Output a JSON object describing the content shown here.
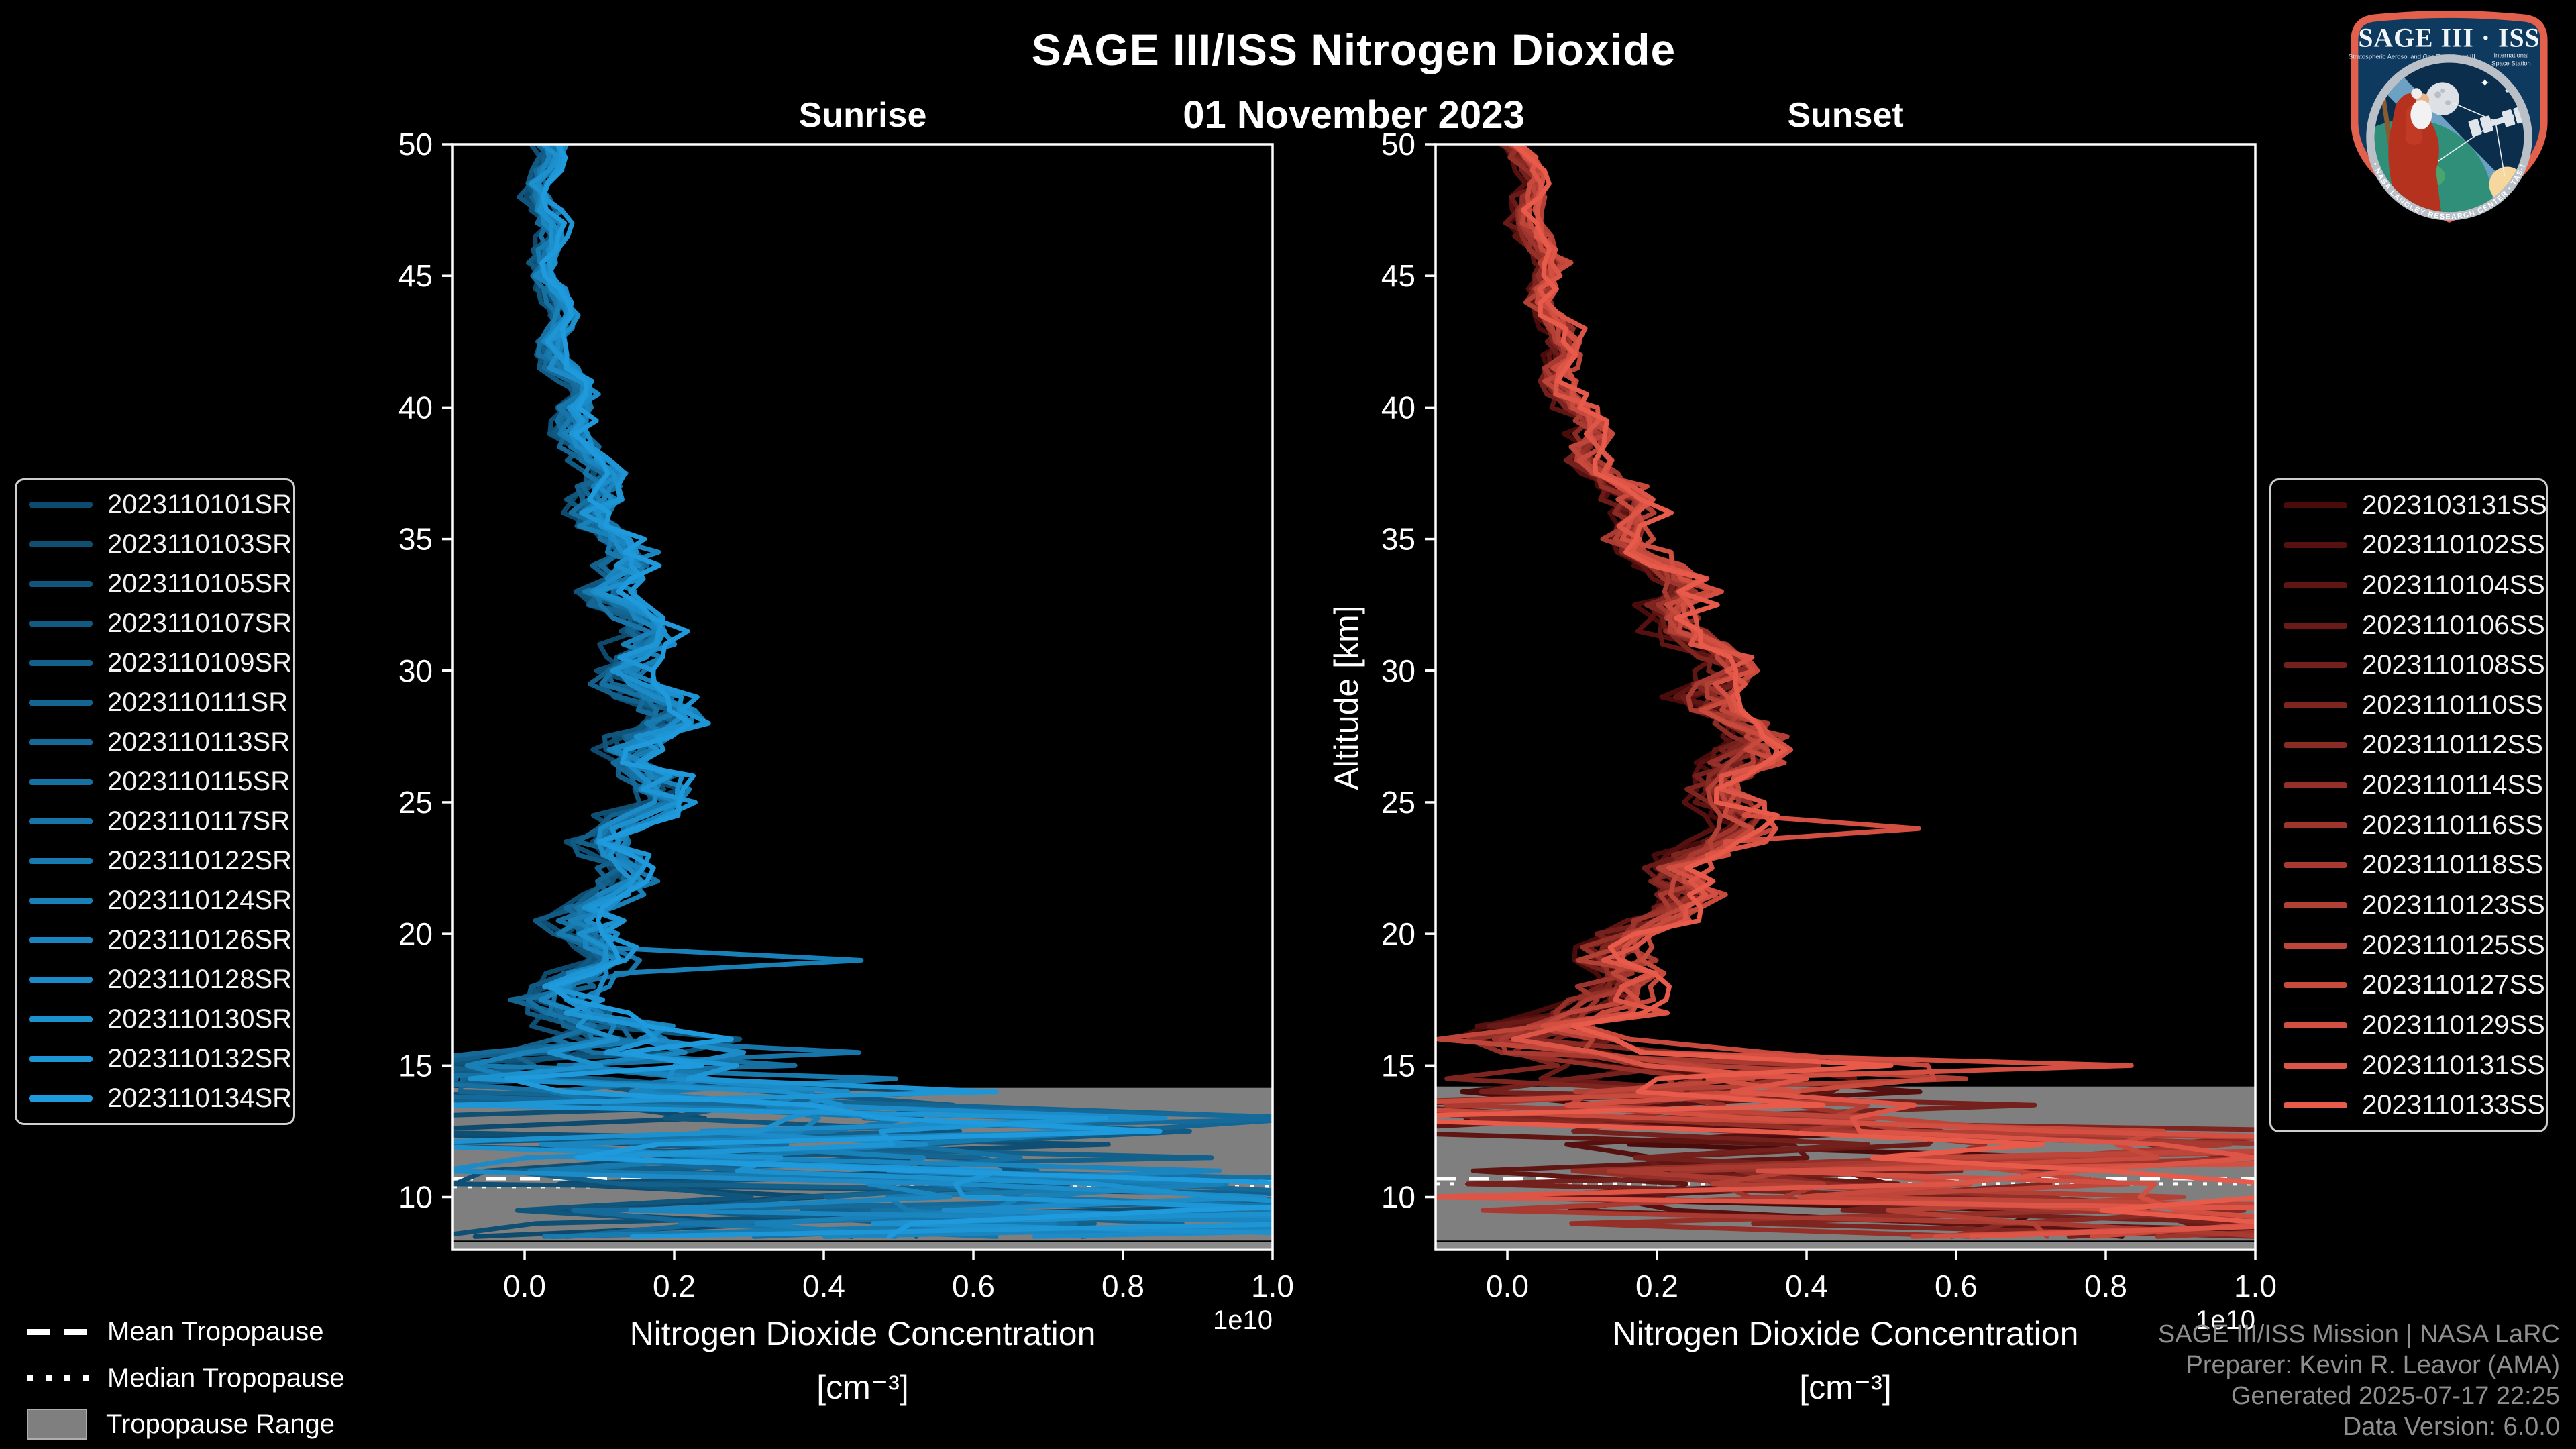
{
  "header": {
    "title": "SAGE III/ISS Nitrogen Dioxide",
    "date": "01 November 2023",
    "left_panel_label": "Sunrise",
    "right_panel_label": "Sunset"
  },
  "axes": {
    "xlabel_line1": "Nitrogen Dioxide Concentration",
    "xlabel_line2": "[cm⁻³]",
    "ylabel": "Altitude [km]",
    "offset_text": "1e10"
  },
  "tropopause_legend": {
    "mean": "Mean Tropopause",
    "median": "Median Tropopause",
    "range": "Tropopause Range"
  },
  "footer": {
    "lines": [
      "SAGE III/ISS Mission | NASA LaRC",
      "Preparer: Kevin R. Leavor (AMA)",
      "Generated 2025-07-17 22:25",
      "Data Version: 6.0.0"
    ]
  },
  "logo": {
    "title": "SAGE III · ISS",
    "subtitle_left": "Stratospheric Aerosol and Gas Experiment III",
    "subtitle_right_1": "International",
    "subtitle_right_2": "Space Station",
    "ring_text": "BALL • NASA LANGLEY RESEARCH CENTER • TAS-I • ESA"
  },
  "chart_data": [
    {
      "type": "line",
      "title": "Sunrise",
      "xlabel": "Nitrogen Dioxide Concentration [cm⁻³] (×1e10)",
      "ylabel": "Altitude [km]",
      "xlim": [
        -0.096,
        1.0
      ],
      "ylim": [
        8.0,
        50.0
      ],
      "xticks": {
        "values": [
          0.0,
          0.2,
          0.4,
          0.6,
          0.8,
          1.0
        ],
        "labels": [
          "0.0",
          "0.2",
          "0.4",
          "0.6",
          "0.8",
          "1.0"
        ]
      },
      "yticks": {
        "values": [
          10,
          15,
          20,
          25,
          30,
          35,
          40,
          45,
          50
        ],
        "labels": [
          "10",
          "15",
          "20",
          "25",
          "30",
          "35",
          "40",
          "45",
          "50"
        ]
      },
      "offset_text": "1e10",
      "grid": false,
      "legend_position": "outside-left",
      "line_color_dark": "#0e4a6d",
      "line_color_light": "#1f9bdd",
      "n_series": 16,
      "series": [
        "2023110101SR",
        "2023110103SR",
        "2023110105SR",
        "2023110107SR",
        "2023110109SR",
        "2023110111SR",
        "2023110113SR",
        "2023110115SR",
        "2023110117SR",
        "2023110122SR",
        "2023110124SR",
        "2023110126SR",
        "2023110128SR",
        "2023110130SR",
        "2023110132SR",
        "2023110134SR"
      ],
      "mean_profile": {
        "altitude_km": [
          50,
          46,
          42,
          40,
          36,
          32,
          30,
          28,
          26,
          24,
          22,
          20,
          18,
          16,
          15,
          14,
          13,
          12,
          11,
          10,
          9,
          8
        ],
        "concentration_1e10": [
          0.025,
          0.03,
          0.05,
          0.065,
          0.105,
          0.145,
          0.16,
          0.17,
          0.165,
          0.145,
          0.115,
          0.09,
          0.075,
          0.08,
          0.12,
          0.2,
          0.3,
          0.42,
          0.5,
          0.55,
          0.6,
          0.55
        ]
      },
      "spread_profile": {
        "altitude_km": [
          50,
          45,
          40,
          35,
          30,
          25,
          20,
          18,
          16,
          15,
          14,
          13,
          12,
          11,
          10,
          9,
          8
        ],
        "sigma_1e10": [
          0.022,
          0.022,
          0.028,
          0.04,
          0.05,
          0.05,
          0.05,
          0.06,
          0.1,
          0.25,
          0.3,
          0.35,
          0.4,
          0.45,
          0.45,
          0.45,
          0.4
        ]
      },
      "notable_spike": {
        "series": "2023110124SR",
        "altitude_km": 19,
        "concentration_1e10": 0.45
      },
      "tropopause": {
        "mean_km": 10.7,
        "median_km": 10.4,
        "range_km": [
          8.35,
          14.15
        ]
      },
      "sample_step_km": 0.5
    },
    {
      "type": "line",
      "title": "Sunset",
      "xlabel": "Nitrogen Dioxide Concentration [cm⁻³] (×1e10)",
      "ylabel": "Altitude [km]",
      "xlim": [
        -0.096,
        1.0
      ],
      "ylim": [
        8.0,
        50.0
      ],
      "xticks": {
        "values": [
          0.0,
          0.2,
          0.4,
          0.6,
          0.8,
          1.0
        ],
        "labels": [
          "0.0",
          "0.2",
          "0.4",
          "0.6",
          "0.8",
          "1.0"
        ]
      },
      "yticks": {
        "values": [
          10,
          15,
          20,
          25,
          30,
          35,
          40,
          45,
          50
        ],
        "labels": [
          "10",
          "15",
          "20",
          "25",
          "30",
          "35",
          "40",
          "45",
          "50"
        ]
      },
      "offset_text": "1e10",
      "grid": false,
      "legend_position": "outside-right",
      "line_color_dark": "#4a0b0b",
      "line_color_light": "#e85a4a",
      "n_series": 16,
      "series": [
        "2023103131SS",
        "2023110102SS",
        "2023110104SS",
        "2023110106SS",
        "2023110108SS",
        "2023110110SS",
        "2023110112SS",
        "2023110114SS",
        "2023110116SS",
        "2023110118SS",
        "2023110123SS",
        "2023110125SS",
        "2023110127SS",
        "2023110129SS",
        "2023110131SS",
        "2023110133SS"
      ],
      "mean_profile": {
        "altitude_km": [
          50,
          46,
          42,
          40,
          38,
          36,
          34,
          32,
          30,
          28,
          26,
          24,
          22,
          20,
          18,
          16,
          15,
          14,
          13,
          12,
          11,
          10,
          9,
          8
        ],
        "concentration_1e10": [
          0.02,
          0.04,
          0.07,
          0.09,
          0.12,
          0.16,
          0.2,
          0.24,
          0.28,
          0.31,
          0.31,
          0.29,
          0.24,
          0.18,
          0.12,
          0.1,
          0.16,
          0.24,
          0.34,
          0.44,
          0.52,
          0.58,
          0.62,
          0.58
        ]
      },
      "spread_profile": {
        "altitude_km": [
          50,
          45,
          40,
          35,
          30,
          25,
          20,
          18,
          16,
          15,
          14,
          13,
          12,
          11,
          10,
          9,
          8
        ],
        "sigma_1e10": [
          0.02,
          0.025,
          0.03,
          0.04,
          0.05,
          0.05,
          0.05,
          0.07,
          0.12,
          0.28,
          0.32,
          0.38,
          0.42,
          0.46,
          0.46,
          0.46,
          0.42
        ]
      },
      "notable_spike": {
        "series": "2023110129SS",
        "altitude_km": 24,
        "concentration_1e10": 0.55
      },
      "tropopause": {
        "mean_km": 10.7,
        "median_km": 10.5,
        "range_km": [
          8.35,
          14.2
        ]
      },
      "sample_step_km": 0.5
    }
  ],
  "colors": {
    "background": "#000000",
    "text": "#ffffff",
    "footer_text": "#8f8f8f",
    "tropopause_band": "#7f7f7f",
    "tropopause_line": "#ffffff",
    "spine": "#ffffff",
    "legend_border": "#cfcfcf",
    "logo_border": "#e2604c",
    "logo_field": "#0e3a5f"
  }
}
